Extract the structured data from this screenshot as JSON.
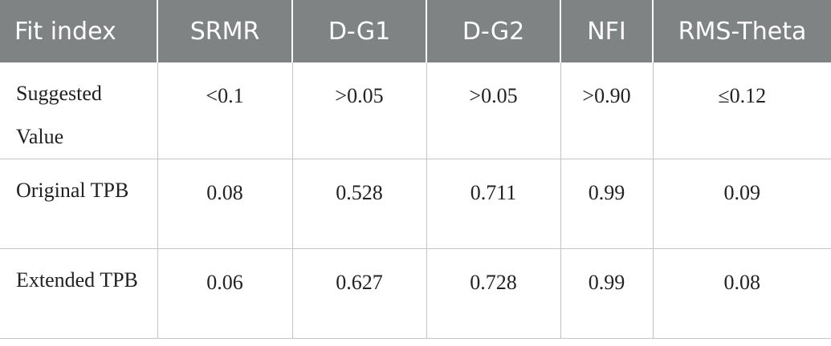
{
  "table": {
    "headers": [
      "Fit index",
      "SRMR",
      "D-G1",
      "D-G2",
      "NFI",
      "RMS-Theta"
    ],
    "rows": [
      {
        "label": "Suggested Value",
        "cells": [
          "<0.1",
          ">0.05",
          ">0.05",
          ">0.90",
          "≤0.12"
        ]
      },
      {
        "label": "Original TPB",
        "cells": [
          "0.08",
          "0.528",
          "0.711",
          "0.99",
          "0.09"
        ]
      },
      {
        "label": "Extended TPB",
        "cells": [
          "0.06",
          "0.627",
          "0.728",
          "0.99",
          "0.08"
        ]
      }
    ]
  },
  "colors": {
    "header_background": "#808383",
    "header_text": "#ffffff",
    "grid_lines": "#c4c4c4"
  }
}
